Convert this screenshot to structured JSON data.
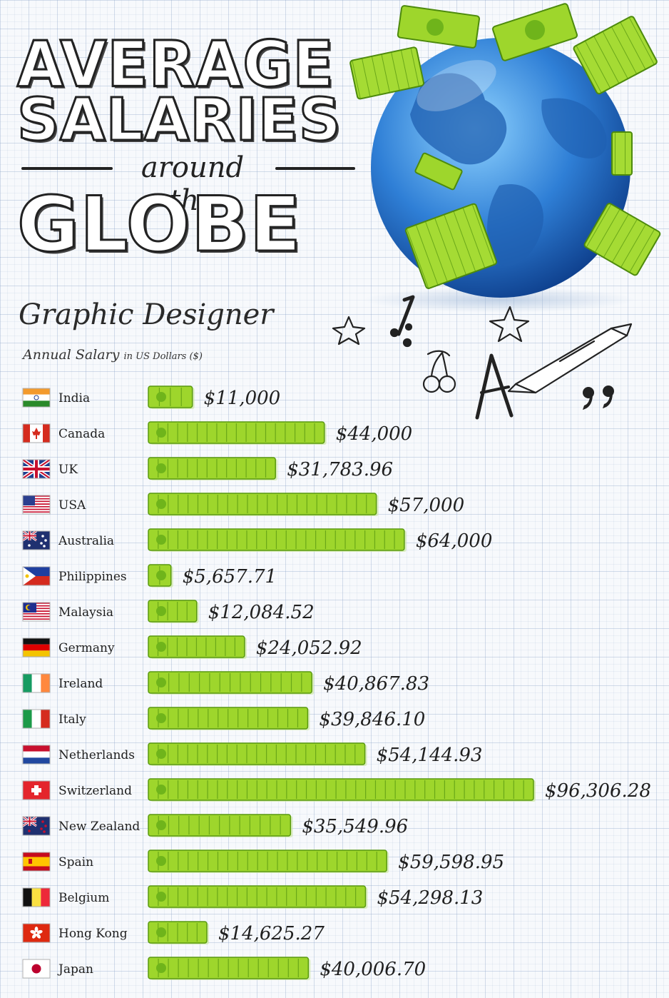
{
  "title": {
    "line1": "AVERAGE",
    "line2": "SALARIES",
    "line3": "around the",
    "line4": "GLOBE"
  },
  "subtitle": "Graphic Designer",
  "subnote": {
    "main": "Annual Salary",
    "small": "in US Dollars ($)"
  },
  "colors": {
    "bill_green": "#9ed62c",
    "bill_dark": "#5a9a10",
    "globe_blue": "#2f7fd6",
    "ink": "#1e1e1e"
  },
  "chart_data": {
    "type": "bar",
    "orientation": "horizontal",
    "title": "Graphic Designer",
    "xlabel": "Annual Salary in US Dollars ($)",
    "xlim": [
      0,
      100000
    ],
    "grid": false,
    "categories": [
      "India",
      "Canada",
      "UK",
      "USA",
      "Australia",
      "Philippines",
      "Malaysia",
      "Germany",
      "Ireland",
      "Italy",
      "Netherlands",
      "Switzerland",
      "New Zealand",
      "Spain",
      "Belgium",
      "Hong Kong",
      "Japan"
    ],
    "flags": [
      "india-flag-icon",
      "canada-flag-icon",
      "uk-flag-icon",
      "usa-flag-icon",
      "australia-flag-icon",
      "philippines-flag-icon",
      "malaysia-flag-icon",
      "germany-flag-icon",
      "ireland-flag-icon",
      "italy-flag-icon",
      "netherlands-flag-icon",
      "switzerland-flag-icon",
      "new-zealand-flag-icon",
      "spain-flag-icon",
      "belgium-flag-icon",
      "hong-kong-flag-icon",
      "japan-flag-icon"
    ],
    "values": [
      11000,
      44000,
      31783.96,
      57000,
      64000,
      5657.71,
      12084.52,
      24052.92,
      40867.83,
      39846.1,
      54144.93,
      96306.28,
      35549.96,
      59598.95,
      54298.13,
      14625.27,
      40006.7
    ],
    "labels": [
      "$11,000",
      "$44,000",
      "$31,783.96",
      "$57,000",
      "$64,000",
      "$5,657.71",
      "$12,084.52",
      "$24,052.92",
      "$40,867.83",
      "$39,846.10",
      "$54,144.93",
      "$96,306.28",
      "$35,549.96",
      "$59,598.95",
      "$54,298.13",
      "$14,625.27",
      "$40,006.70"
    ]
  }
}
